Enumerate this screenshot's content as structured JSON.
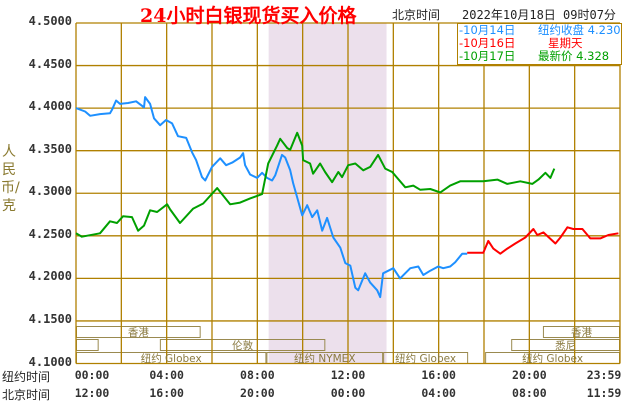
{
  "header": {
    "title": "24小时白银现货买入价格",
    "timezone_label": "北京时间",
    "timestamp": "2022年10月18日 09时07分"
  },
  "legend": [
    {
      "date": "-10月14日",
      "text": "纽约收盘 4.230",
      "color": "#1e90ff"
    },
    {
      "date": "-10月16日",
      "text": "星期天",
      "color": "#ff0000"
    },
    {
      "date": "-10月17日",
      "text": "最新价 4.328",
      "color": "#00a000"
    }
  ],
  "chart_data": {
    "type": "line",
    "title": "24小时白银现货买入价格",
    "ylabel": "人民币/克",
    "ylim": [
      4.1,
      4.5
    ],
    "xlim": [
      0,
      24
    ],
    "grid": true,
    "legend_placement": "top-right",
    "yticks": [
      "4.5000",
      "4.4500",
      "4.4000",
      "4.3500",
      "4.3000",
      "4.2500",
      "4.2000",
      "4.1500",
      "4.1000"
    ],
    "xaxis_rows": [
      {
        "label": "纽约时间",
        "ticks": [
          "00:00",
          "04:00",
          "08:00",
          "12:00",
          "16:00",
          "20:00",
          "23:59"
        ]
      },
      {
        "label": "北京时间",
        "ticks": [
          "12:00",
          "16:00",
          "20:00",
          "00:00",
          "04:00",
          "08:00",
          "11:59"
        ]
      }
    ],
    "highlight_range_hours": [
      8.5,
      13.7
    ],
    "colors": {
      "grid": "#b08000",
      "highlight": "#ece0ec"
    },
    "series": [
      {
        "name": "10月14日",
        "color": "#1e90ff",
        "points": [
          [
            0,
            4.4
          ],
          [
            0.4,
            4.396
          ],
          [
            0.62,
            4.391
          ],
          [
            1.06,
            4.393
          ],
          [
            1.5,
            4.394
          ],
          [
            1.59,
            4.398
          ],
          [
            1.77,
            4.409
          ],
          [
            1.94,
            4.405
          ],
          [
            2.3,
            4.406
          ],
          [
            2.65,
            4.408
          ],
          [
            3.0,
            4.401
          ],
          [
            3.05,
            4.413
          ],
          [
            3.27,
            4.405
          ],
          [
            3.44,
            4.388
          ],
          [
            3.71,
            4.38
          ],
          [
            3.97,
            4.386
          ],
          [
            4.24,
            4.382
          ],
          [
            4.5,
            4.367
          ],
          [
            4.86,
            4.365
          ],
          [
            5.12,
            4.348
          ],
          [
            5.3,
            4.339
          ],
          [
            5.56,
            4.319
          ],
          [
            5.7,
            4.315
          ],
          [
            6.0,
            4.331
          ],
          [
            6.36,
            4.341
          ],
          [
            6.62,
            4.333
          ],
          [
            6.89,
            4.336
          ],
          [
            7.24,
            4.342
          ],
          [
            7.37,
            4.347
          ],
          [
            7.46,
            4.333
          ],
          [
            7.68,
            4.322
          ],
          [
            7.99,
            4.318
          ],
          [
            8.21,
            4.324
          ],
          [
            8.43,
            4.318
          ],
          [
            8.65,
            4.315
          ],
          [
            8.79,
            4.321
          ],
          [
            9.09,
            4.345
          ],
          [
            9.23,
            4.342
          ],
          [
            9.45,
            4.327
          ],
          [
            9.58,
            4.312
          ],
          [
            9.76,
            4.295
          ],
          [
            9.98,
            4.274
          ],
          [
            10.2,
            4.286
          ],
          [
            10.42,
            4.272
          ],
          [
            10.64,
            4.28
          ],
          [
            10.86,
            4.256
          ],
          [
            11.08,
            4.271
          ],
          [
            11.35,
            4.248
          ],
          [
            11.66,
            4.236
          ],
          [
            11.88,
            4.218
          ],
          [
            12.1,
            4.215
          ],
          [
            12.32,
            4.189
          ],
          [
            12.45,
            4.186
          ],
          [
            12.76,
            4.206
          ],
          [
            12.98,
            4.195
          ],
          [
            13.29,
            4.186
          ],
          [
            13.42,
            4.178
          ],
          [
            13.55,
            4.206
          ],
          [
            14.0,
            4.212
          ],
          [
            14.3,
            4.2
          ],
          [
            14.75,
            4.212
          ],
          [
            15.1,
            4.214
          ],
          [
            15.32,
            4.204
          ],
          [
            15.63,
            4.209
          ],
          [
            15.98,
            4.214
          ],
          [
            16.2,
            4.212
          ],
          [
            16.51,
            4.214
          ],
          [
            16.73,
            4.219
          ],
          [
            17.04,
            4.229
          ],
          [
            17.26,
            4.229
          ]
        ]
      },
      {
        "name": "10月16日",
        "color": "#ff0000",
        "points": [
          [
            17.26,
            4.23
          ],
          [
            17.97,
            4.23
          ],
          [
            18.19,
            4.244
          ],
          [
            18.41,
            4.235
          ],
          [
            18.72,
            4.229
          ],
          [
            19.03,
            4.235
          ],
          [
            19.38,
            4.241
          ],
          [
            19.82,
            4.248
          ],
          [
            20.18,
            4.258
          ],
          [
            20.35,
            4.251
          ],
          [
            20.62,
            4.254
          ],
          [
            21.15,
            4.241
          ],
          [
            21.37,
            4.248
          ],
          [
            21.68,
            4.26
          ],
          [
            21.94,
            4.258
          ],
          [
            22.34,
            4.258
          ],
          [
            22.69,
            4.247
          ],
          [
            23.13,
            4.247
          ],
          [
            23.49,
            4.251
          ],
          [
            23.93,
            4.253
          ]
        ]
      },
      {
        "name": "10月17日",
        "color": "#00a000",
        "points": [
          [
            0,
            4.253
          ],
          [
            0.26,
            4.249
          ],
          [
            1.06,
            4.253
          ],
          [
            1.5,
            4.267
          ],
          [
            1.81,
            4.265
          ],
          [
            2.08,
            4.273
          ],
          [
            2.47,
            4.272
          ],
          [
            2.74,
            4.256
          ],
          [
            3.0,
            4.262
          ],
          [
            3.27,
            4.28
          ],
          [
            3.58,
            4.278
          ],
          [
            4.02,
            4.287
          ],
          [
            4.15,
            4.281
          ],
          [
            4.59,
            4.265
          ],
          [
            5.17,
            4.282
          ],
          [
            5.61,
            4.288
          ],
          [
            6.23,
            4.306
          ],
          [
            6.8,
            4.287
          ],
          [
            7.24,
            4.289
          ],
          [
            7.68,
            4.294
          ],
          [
            8.21,
            4.299
          ],
          [
            8.34,
            4.316
          ],
          [
            8.48,
            4.335
          ],
          [
            8.87,
            4.356
          ],
          [
            9.01,
            4.364
          ],
          [
            9.32,
            4.353
          ],
          [
            9.45,
            4.351
          ],
          [
            9.76,
            4.371
          ],
          [
            9.98,
            4.356
          ],
          [
            10.02,
            4.339
          ],
          [
            10.33,
            4.335
          ],
          [
            10.46,
            4.323
          ],
          [
            10.77,
            4.335
          ],
          [
            10.99,
            4.325
          ],
          [
            11.3,
            4.313
          ],
          [
            11.57,
            4.325
          ],
          [
            11.74,
            4.319
          ],
          [
            12.01,
            4.333
          ],
          [
            12.32,
            4.335
          ],
          [
            12.67,
            4.327
          ],
          [
            12.98,
            4.331
          ],
          [
            13.33,
            4.345
          ],
          [
            13.64,
            4.329
          ],
          [
            13.95,
            4.325
          ],
          [
            14.17,
            4.318
          ],
          [
            14.53,
            4.307
          ],
          [
            14.88,
            4.309
          ],
          [
            15.19,
            4.304
          ],
          [
            15.63,
            4.305
          ],
          [
            16.07,
            4.301
          ],
          [
            16.51,
            4.309
          ],
          [
            16.95,
            4.314
          ],
          [
            17.97,
            4.314
          ],
          [
            18.59,
            4.316
          ],
          [
            19.03,
            4.311
          ],
          [
            19.6,
            4.314
          ],
          [
            20.13,
            4.311
          ],
          [
            20.4,
            4.316
          ],
          [
            20.71,
            4.324
          ],
          [
            20.93,
            4.318
          ],
          [
            21.1,
            4.329
          ]
        ]
      }
    ],
    "sessions": [
      {
        "label": "香港",
        "row": 0,
        "start": 0,
        "end": 5.5
      },
      {
        "label": "香港",
        "row": 0,
        "start": 20.6,
        "end": 24
      },
      {
        "label": "",
        "row": 1,
        "start": 0,
        "end": 1.0
      },
      {
        "label": "伦敦",
        "row": 1,
        "start": 3.7,
        "end": 11.0
      },
      {
        "label": "悉尼",
        "row": 1,
        "start": 19.2,
        "end": 24
      },
      {
        "label": "纽约 Globex",
        "row": 2,
        "start": 0,
        "end": 8.4
      },
      {
        "label": "纽约 NYMEX",
        "row": 2,
        "start": 8.4,
        "end": 13.55
      },
      {
        "label": "纽约 Globex",
        "row": 2,
        "start": 13.55,
        "end": 17.3
      },
      {
        "label": "纽约 Globex",
        "row": 2,
        "start": 18.05,
        "end": 24
      }
    ]
  }
}
